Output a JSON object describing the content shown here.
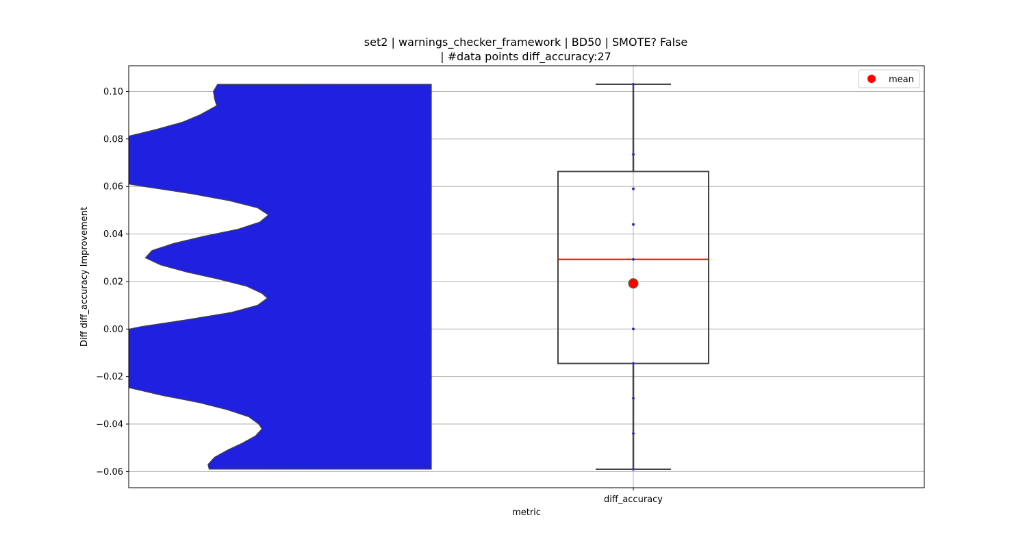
{
  "chart_data": {
    "type": "violin+box",
    "title_line1": "set2 | warnings_checker_framework | BD50 | SMOTE? False",
    "title_line2": "| #data points diff_accuracy:27",
    "xlabel": "metric",
    "ylabel": "Diff diff_accuracy Improvement",
    "categories": [
      "diff_accuracy"
    ],
    "ylim": [
      -0.0668,
      0.1108
    ],
    "yticks": [
      -0.06,
      -0.04,
      -0.02,
      0.0,
      0.02,
      0.04,
      0.06,
      0.08,
      0.1
    ],
    "ytick_labels": [
      "−0.06",
      "−0.04",
      "−0.02",
      "0.00",
      "0.02",
      "0.04",
      "0.06",
      "0.08",
      "0.10"
    ],
    "grid": true,
    "legend": {
      "position": "top-right",
      "entries": [
        "mean"
      ]
    },
    "violin": {
      "range": [
        -0.059,
        0.103
      ],
      "color": "#2020e0",
      "profile": [
        [
          0.103,
          0.436
        ],
        [
          0.1,
          0.455
        ],
        [
          0.097,
          0.45
        ],
        [
          0.094,
          0.44
        ],
        [
          0.09,
          0.52
        ],
        [
          0.087,
          0.6
        ],
        [
          0.084,
          0.72
        ],
        [
          0.08,
          0.9
        ],
        [
          0.077,
          1.0
        ],
        [
          0.073,
          1.0
        ],
        [
          0.069,
          1.0
        ],
        [
          0.066,
          1.0
        ],
        [
          0.063,
          0.98
        ],
        [
          0.06,
          0.78
        ],
        [
          0.057,
          0.56
        ],
        [
          0.054,
          0.38
        ],
        [
          0.051,
          0.25
        ],
        [
          0.048,
          0.2
        ],
        [
          0.045,
          0.24
        ],
        [
          0.042,
          0.34
        ],
        [
          0.039,
          0.5
        ],
        [
          0.036,
          0.64
        ],
        [
          0.033,
          0.74
        ],
        [
          0.03,
          0.77
        ],
        [
          0.027,
          0.7
        ],
        [
          0.024,
          0.58
        ],
        [
          0.021,
          0.43
        ],
        [
          0.018,
          0.3
        ],
        [
          0.015,
          0.23
        ],
        [
          0.013,
          0.205
        ],
        [
          0.01,
          0.25
        ],
        [
          0.007,
          0.37
        ],
        [
          0.004,
          0.57
        ],
        [
          0.001,
          0.79
        ],
        [
          -0.003,
          1.0
        ],
        [
          -0.006,
          1.0
        ],
        [
          -0.01,
          1.0
        ],
        [
          -0.014,
          1.0
        ],
        [
          -0.018,
          1.0
        ],
        [
          -0.021,
          1.0
        ],
        [
          -0.024,
          0.88
        ],
        [
          -0.028,
          0.69
        ],
        [
          -0.031,
          0.52
        ],
        [
          -0.034,
          0.39
        ],
        [
          -0.037,
          0.29
        ],
        [
          -0.04,
          0.245
        ],
        [
          -0.042,
          0.23
        ],
        [
          -0.045,
          0.26
        ],
        [
          -0.048,
          0.32
        ],
        [
          -0.051,
          0.39
        ],
        [
          -0.054,
          0.45
        ],
        [
          -0.057,
          0.48
        ],
        [
          -0.059,
          0.475
        ]
      ]
    },
    "box": {
      "whisker_low": -0.059,
      "q1": -0.0145,
      "median": 0.0293,
      "q3": 0.0663,
      "whisker_high": 0.103,
      "mean": 0.0192,
      "box_color": "#444444",
      "median_color": "#ff0000",
      "mean_color": "#ff0000"
    },
    "points": {
      "values": [
        0.103,
        0.0735,
        0.059,
        0.044,
        0.0293,
        0.0,
        -0.0145,
        -0.0292,
        -0.044,
        -0.059
      ],
      "color": "#2020e0"
    }
  }
}
